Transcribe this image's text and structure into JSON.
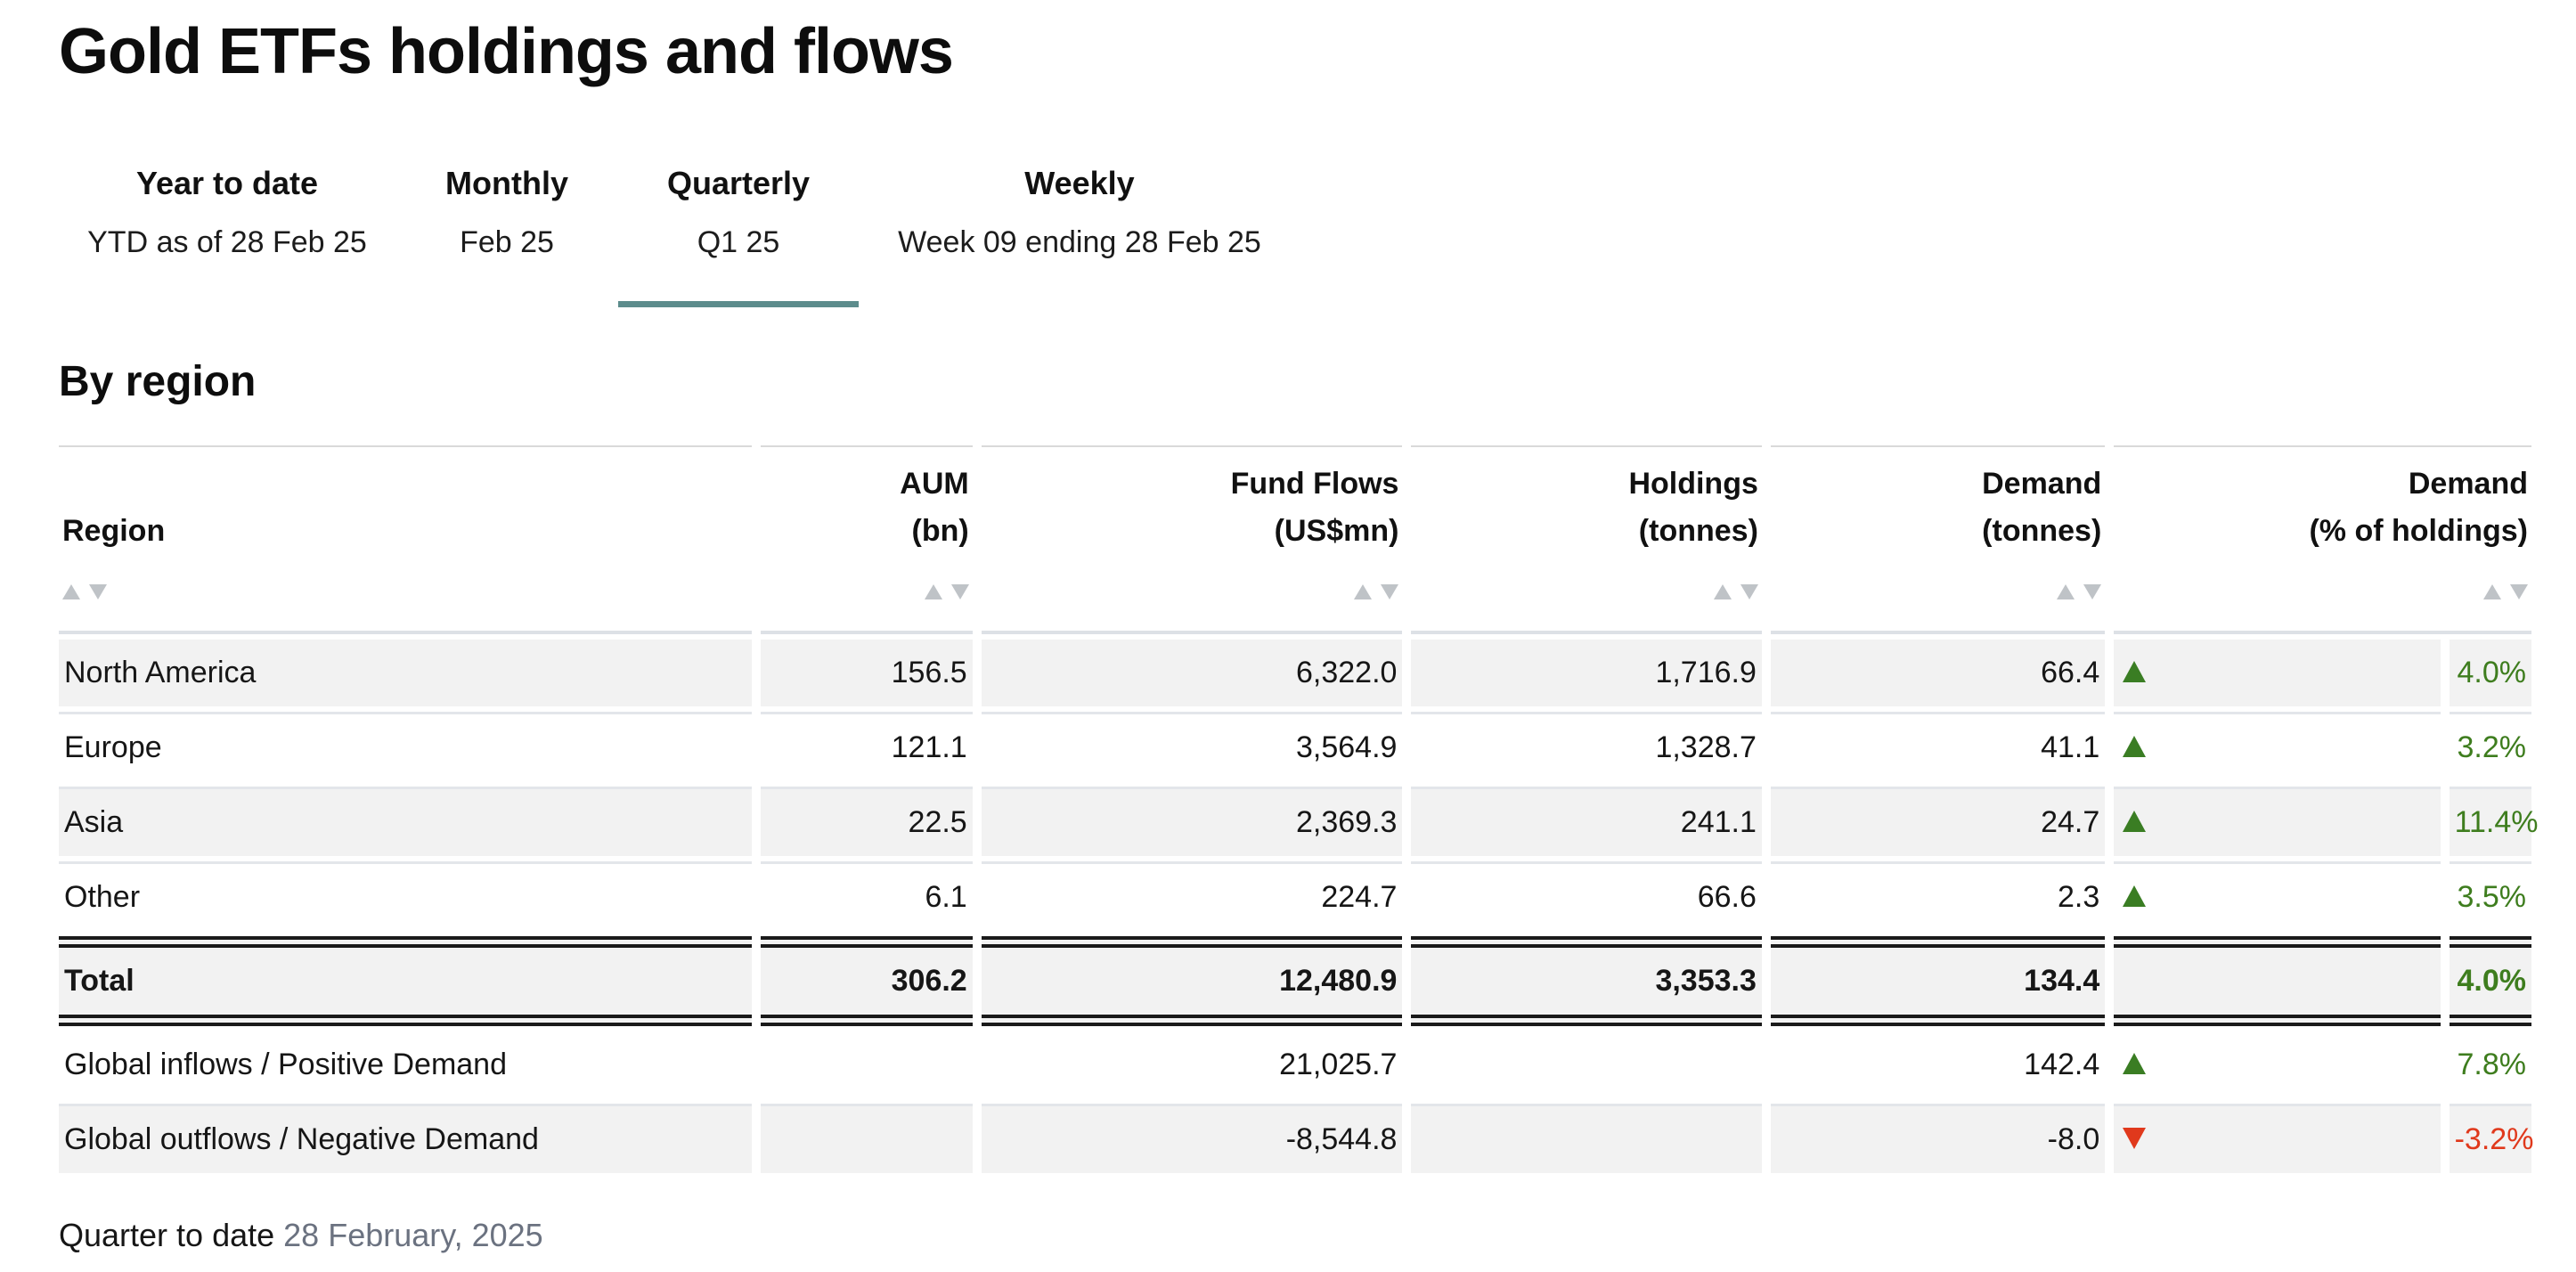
{
  "page": {
    "title": "Gold ETFs holdings and flows"
  },
  "tabs": [
    {
      "label": "Year to date",
      "sublabel": "YTD as of 28 Feb 25",
      "active": false
    },
    {
      "label": "Monthly",
      "sublabel": "Feb 25",
      "active": false
    },
    {
      "label": "Quarterly",
      "sublabel": "Q1 25",
      "active": true
    },
    {
      "label": "Weekly",
      "sublabel": "Week 09 ending 28 Feb 25",
      "active": false
    }
  ],
  "section": {
    "heading": "By region"
  },
  "table": {
    "columns": [
      {
        "line1": "",
        "line2": "Region",
        "sortable": true
      },
      {
        "line1": "AUM",
        "line2": "(bn)",
        "sortable": true
      },
      {
        "line1": "Fund Flows",
        "line2": "(US$mn)",
        "sortable": true
      },
      {
        "line1": "Holdings",
        "line2": "(tonnes)",
        "sortable": true
      },
      {
        "line1": "Demand",
        "line2": "(tonnes)",
        "sortable": true
      },
      {
        "line1": "Demand",
        "line2": "(% of holdings)",
        "sortable": true
      }
    ],
    "rows": [
      {
        "region": "North America",
        "aum": "156.5",
        "fund_flows": "6,322.0",
        "holdings": "1,716.9",
        "demand": "66.4",
        "direction": "up",
        "demand_pct": "4.0%"
      },
      {
        "region": "Europe",
        "aum": "121.1",
        "fund_flows": "3,564.9",
        "holdings": "1,328.7",
        "demand": "41.1",
        "direction": "up",
        "demand_pct": "3.2%"
      },
      {
        "region": "Asia",
        "aum": "22.5",
        "fund_flows": "2,369.3",
        "holdings": "241.1",
        "demand": "24.7",
        "direction": "up",
        "demand_pct": "11.4%"
      },
      {
        "region": "Other",
        "aum": "6.1",
        "fund_flows": "224.7",
        "holdings": "66.6",
        "demand": "2.3",
        "direction": "up",
        "demand_pct": "3.5%"
      }
    ],
    "total": {
      "region": "Total",
      "aum": "306.2",
      "fund_flows": "12,480.9",
      "holdings": "3,353.3",
      "demand": "134.4",
      "direction": "none",
      "demand_pct": "4.0%"
    },
    "global_rows": [
      {
        "region": "Global inflows / Positive Demand",
        "aum": "",
        "fund_flows": "21,025.7",
        "holdings": "",
        "demand": "142.4",
        "direction": "up",
        "demand_pct": "7.8%"
      },
      {
        "region": "Global outflows / Negative Demand",
        "aum": "",
        "fund_flows": "-8,544.8",
        "holdings": "",
        "demand": "-8.0",
        "direction": "down",
        "demand_pct": "-3.2%"
      }
    ]
  },
  "footer": {
    "label": "Quarter to date",
    "date": "28 February, 2025"
  },
  "colors": {
    "accent_teal": "#5c8c8c",
    "positive_green": "#3a7d23",
    "negative_red": "#e0391c",
    "row_shade": "#f2f2f2"
  }
}
